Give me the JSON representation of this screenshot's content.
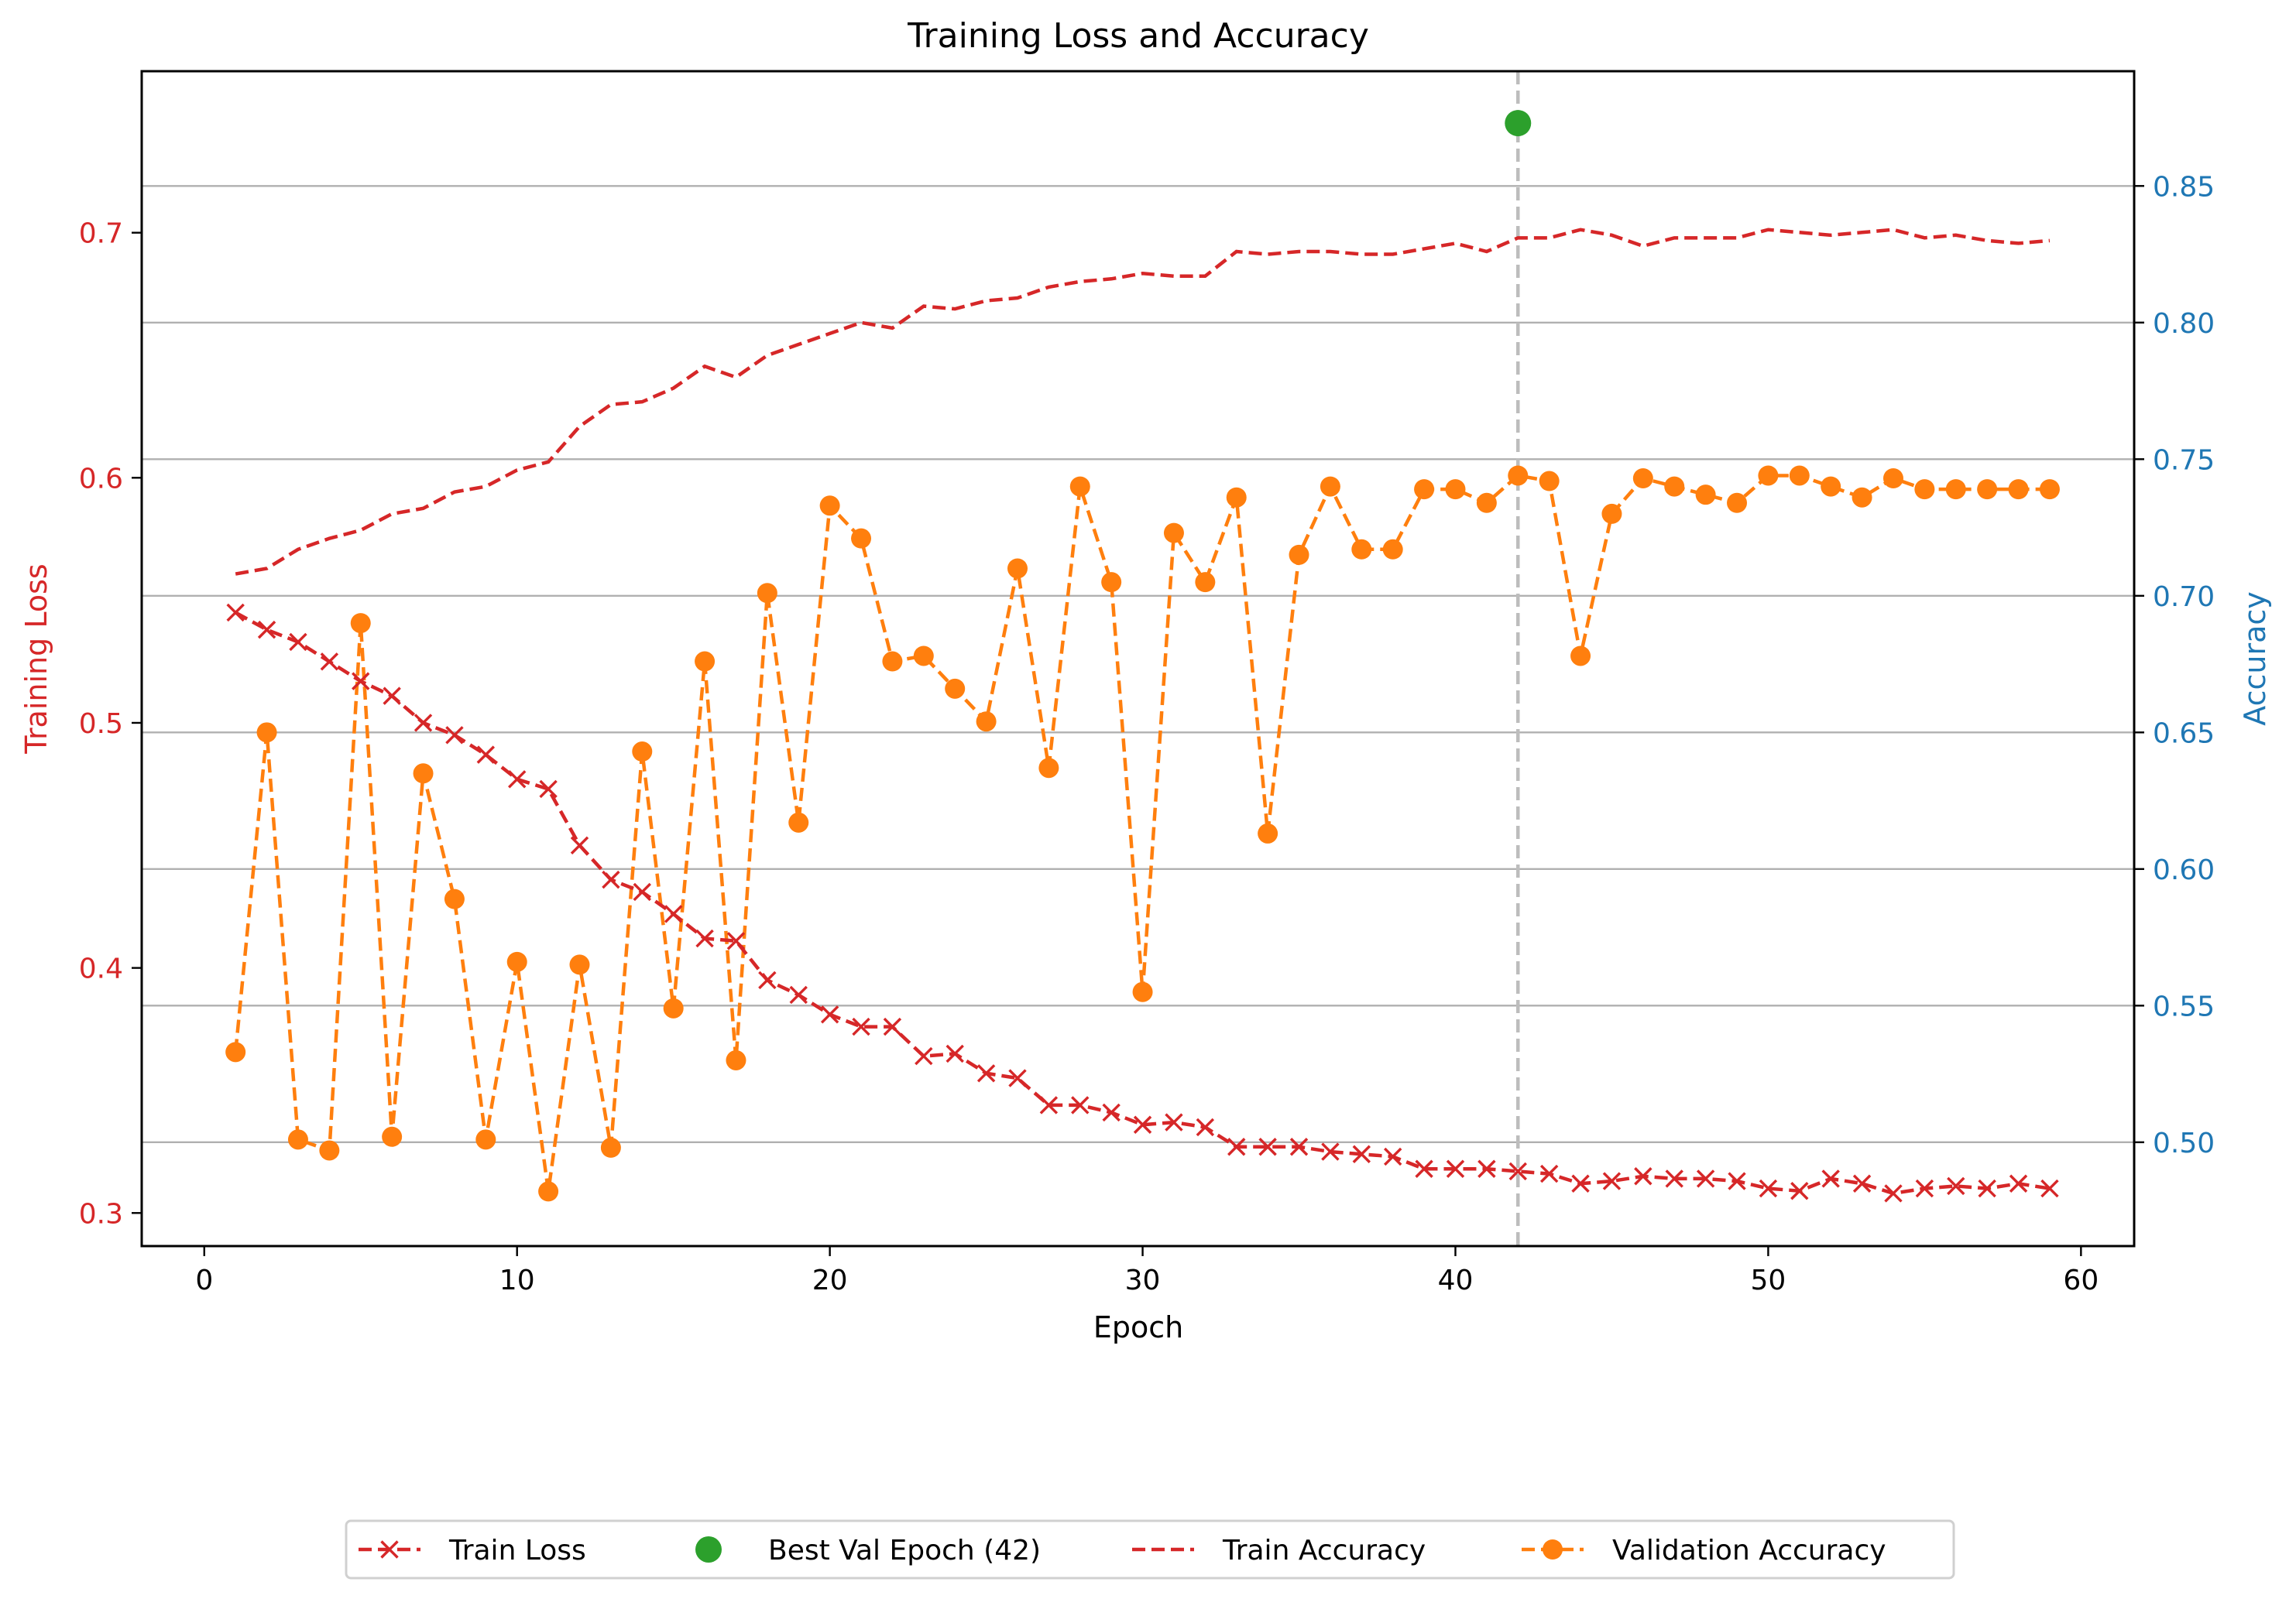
{
  "chart_data": {
    "type": "line",
    "title": "Training Loss and Accuracy",
    "xlabel": "Epoch",
    "ylabel_left": "Training Loss",
    "ylabel_right": "Accuracy",
    "xlim": [
      -2.0,
      61.7
    ],
    "ylim_left": [
      0.2865,
      0.7659
    ],
    "ylim_right": [
      0.462,
      0.892
    ],
    "x_ticks": [
      0,
      10,
      20,
      30,
      40,
      50,
      60
    ],
    "y_left_ticks": [
      0.3,
      0.4,
      0.5,
      0.6,
      0.7
    ],
    "y_right_ticks": [
      0.5,
      0.55,
      0.6,
      0.65,
      0.7,
      0.75,
      0.8,
      0.85
    ],
    "x_tick_labels": [
      "0",
      "10",
      "20",
      "30",
      "40",
      "50",
      "60"
    ],
    "y_left_tick_labels": [
      "0.3",
      "0.4",
      "0.5",
      "0.6",
      "0.7"
    ],
    "y_right_tick_labels": [
      "0.50",
      "0.55",
      "0.60",
      "0.65",
      "0.70",
      "0.75",
      "0.80",
      "0.85"
    ],
    "grid": "horizontal lines at right-axis ticks",
    "legend_position": "bottom-center, below plot",
    "best_epoch_line": 42,
    "series": [
      {
        "name": "Train Loss",
        "axis": "left",
        "color": "#d62728",
        "marker": "x",
        "x": [
          1,
          2,
          3,
          4,
          5,
          6,
          7,
          8,
          9,
          10,
          11,
          12,
          13,
          14,
          15,
          16,
          17,
          18,
          19,
          20,
          21,
          22,
          23,
          24,
          25,
          26,
          27,
          28,
          29,
          30,
          31,
          32,
          33,
          34,
          35,
          36,
          37,
          38,
          39,
          40,
          41,
          42,
          43,
          44,
          45,
          46,
          47,
          48,
          49,
          50,
          51,
          52,
          53,
          54,
          55,
          56,
          57,
          58,
          59
        ],
        "values": [
          0.545,
          0.538,
          0.533,
          0.525,
          0.517,
          0.511,
          0.5,
          0.495,
          0.487,
          0.477,
          0.473,
          0.45,
          0.436,
          0.431,
          0.422,
          0.412,
          0.411,
          0.395,
          0.389,
          0.381,
          0.376,
          0.376,
          0.364,
          0.365,
          0.357,
          0.355,
          0.344,
          0.344,
          0.341,
          0.336,
          0.337,
          0.335,
          0.327,
          0.327,
          0.327,
          0.325,
          0.324,
          0.323,
          0.318,
          0.318,
          0.318,
          0.317,
          0.316,
          0.312,
          0.313,
          0.315,
          0.314,
          0.314,
          0.313,
          0.31,
          0.309,
          0.314,
          0.312,
          0.308,
          0.31,
          0.311,
          0.31,
          0.312,
          0.31
        ]
      },
      {
        "name": "Best Val Epoch (42)",
        "axis": "right",
        "color": "#2ca02c",
        "marker": "o",
        "x": [
          42
        ],
        "values": [
          0.873
        ]
      },
      {
        "name": "Train Accuracy",
        "axis": "right",
        "color": "#d62728",
        "marker": "none",
        "x": [
          1,
          2,
          3,
          4,
          5,
          6,
          7,
          8,
          9,
          10,
          11,
          12,
          13,
          14,
          15,
          16,
          17,
          18,
          19,
          20,
          21,
          22,
          23,
          24,
          25,
          26,
          27,
          28,
          29,
          30,
          31,
          32,
          33,
          34,
          35,
          36,
          37,
          38,
          39,
          40,
          41,
          42,
          43,
          44,
          45,
          46,
          47,
          48,
          49,
          50,
          51,
          52,
          53,
          54,
          55,
          56,
          57,
          58,
          59
        ],
        "values": [
          0.708,
          0.71,
          0.717,
          0.721,
          0.724,
          0.73,
          0.732,
          0.738,
          0.74,
          0.746,
          0.749,
          0.762,
          0.77,
          0.771,
          0.776,
          0.784,
          0.78,
          0.788,
          0.792,
          0.796,
          0.8,
          0.798,
          0.806,
          0.805,
          0.808,
          0.809,
          0.813,
          0.815,
          0.816,
          0.818,
          0.817,
          0.817,
          0.826,
          0.825,
          0.826,
          0.826,
          0.825,
          0.825,
          0.827,
          0.829,
          0.826,
          0.831,
          0.831,
          0.834,
          0.832,
          0.828,
          0.831,
          0.831,
          0.831,
          0.834,
          0.833,
          0.832,
          0.833,
          0.834,
          0.831,
          0.832,
          0.83,
          0.829,
          0.83
        ]
      },
      {
        "name": "Validation Accuracy",
        "axis": "right",
        "color": "#ff7f0e",
        "marker": "o",
        "x": [
          1,
          2,
          3,
          4,
          5,
          6,
          7,
          8,
          9,
          10,
          11,
          12,
          13,
          14,
          15,
          16,
          17,
          18,
          19,
          20,
          21,
          22,
          23,
          24,
          25,
          26,
          27,
          28,
          29,
          30,
          31,
          32,
          33,
          34,
          35,
          36,
          37,
          38,
          39,
          40,
          41,
          42,
          43,
          44,
          45,
          46,
          47,
          48,
          49,
          50,
          51,
          52,
          53,
          54,
          55,
          56,
          57,
          58,
          59
        ],
        "values": [
          0.533,
          0.65,
          0.501,
          0.497,
          0.69,
          0.502,
          0.635,
          0.589,
          0.501,
          0.566,
          0.482,
          0.565,
          0.498,
          0.643,
          0.549,
          0.676,
          0.53,
          0.701,
          0.617,
          0.733,
          0.721,
          0.676,
          0.678,
          0.666,
          0.654,
          0.71,
          0.637,
          0.74,
          0.705,
          0.555,
          0.723,
          0.705,
          0.736,
          0.613,
          0.715,
          0.74,
          0.717,
          0.717,
          0.739,
          0.739,
          0.734,
          0.744,
          0.742,
          0.678,
          0.73,
          0.743,
          0.74,
          0.737,
          0.734,
          0.744,
          0.744,
          0.74,
          0.736,
          0.743,
          0.739,
          0.739,
          0.739,
          0.739,
          0.739
        ]
      }
    ]
  },
  "legend": {
    "items": [
      {
        "label": "Train Loss",
        "color": "#d62728",
        "marker": "x",
        "dashed": true
      },
      {
        "label": "Best Val Epoch (42)",
        "color": "#2ca02c",
        "marker": "o",
        "dashed": false
      },
      {
        "label": "Train Accuracy",
        "color": "#d62728",
        "marker": "none",
        "dashed": true
      },
      {
        "label": "Validation Accuracy",
        "color": "#ff7f0e",
        "marker": "o",
        "dashed": true
      }
    ]
  },
  "colors": {
    "left_axis": "#d62728",
    "right_axis": "#1f77b4",
    "grid": "#b0b0b0",
    "vline": "#bdbdbd"
  }
}
